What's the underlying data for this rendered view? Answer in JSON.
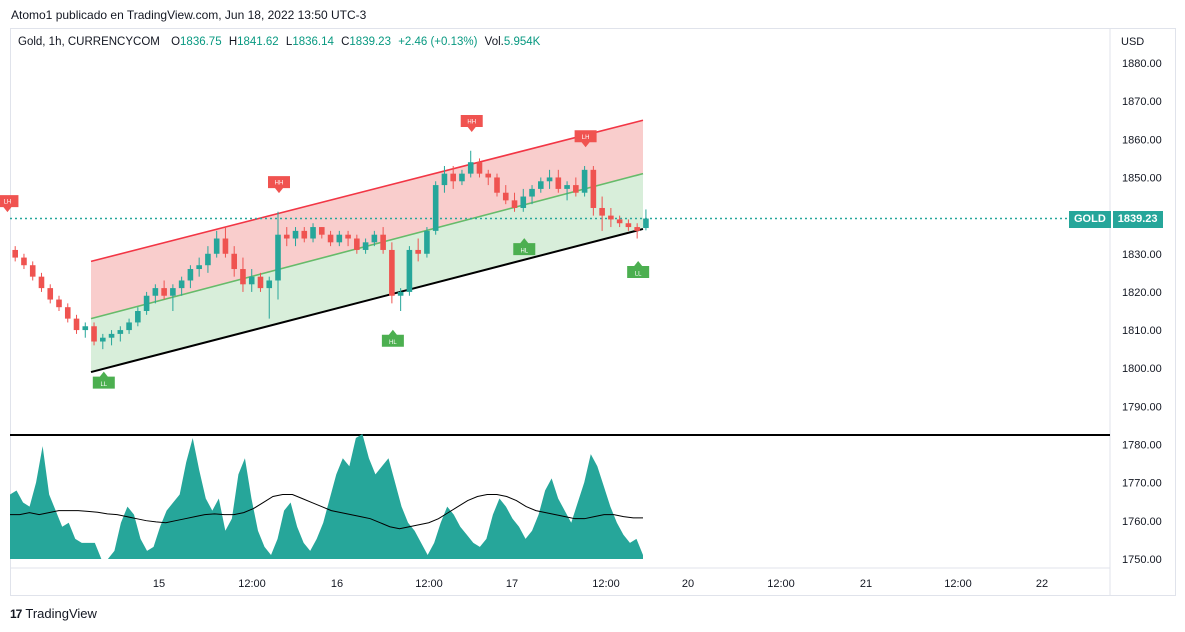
{
  "header": {
    "publisher_line": "Atomo1 publicado en TradingView.com, Jun 18, 2022 13:50 UTC-3"
  },
  "legend": {
    "symbol": "Gold, 1h, CURRENCYCOM",
    "open_label": "O",
    "open": "1836.75",
    "high_label": "H",
    "high": "1841.62",
    "low_label": "L",
    "low": "1836.14",
    "close_label": "C",
    "close": "1839.23",
    "change": "+2.46 (+0.13%)",
    "vol_label": "Vol.",
    "vol": "5.954K"
  },
  "price_badge": {
    "symbol": "GOLD",
    "value": "1839.23"
  },
  "footer": {
    "brand": "TradingView",
    "logo_glyph": "17"
  },
  "colors": {
    "up": "#26a69a",
    "down": "#ef5350",
    "red_zone": "#f8c8c6",
    "green_zone": "#d4ecd6",
    "upper_line": "#f23645",
    "mid_line": "#66bb6a",
    "lower_line": "#000000",
    "volume": "#26a69a"
  },
  "chart_data": {
    "type": "candlestick",
    "currency": "USD",
    "y_ticks": [
      1880,
      1870,
      1860,
      1850,
      1840,
      1830,
      1820,
      1810,
      1800,
      1790,
      1780,
      1770,
      1760,
      1750
    ],
    "y_tick_labels": [
      "1880.00",
      "1870.00",
      "1860.00",
      "1850.00",
      "1840.00",
      "1830.00",
      "1820.00",
      "1810.00",
      "1800.00",
      "1790.00",
      "1780.00",
      "1770.00",
      "1760.00",
      "1750.00"
    ],
    "x_labels": [
      "15",
      "12:00",
      "16",
      "12:00",
      "17",
      "12:00",
      "20",
      "12:00",
      "21",
      "12:00",
      "22"
    ],
    "last_price": 1839.23,
    "candles": [
      [
        1831,
        1832,
        1828,
        1829
      ],
      [
        1829,
        1830,
        1826,
        1827
      ],
      [
        1827,
        1828,
        1823,
        1824
      ],
      [
        1824,
        1825,
        1820,
        1821
      ],
      [
        1821,
        1822,
        1817,
        1818
      ],
      [
        1818,
        1819,
        1815,
        1816
      ],
      [
        1816,
        1817,
        1812,
        1813
      ],
      [
        1813,
        1814,
        1809,
        1810
      ],
      [
        1810,
        1812,
        1808,
        1811
      ],
      [
        1811,
        1812,
        1806,
        1807
      ],
      [
        1807,
        1809,
        1805,
        1808
      ],
      [
        1808,
        1810,
        1806,
        1809
      ],
      [
        1809,
        1811,
        1807,
        1810
      ],
      [
        1810,
        1813,
        1809,
        1812
      ],
      [
        1812,
        1816,
        1811,
        1815
      ],
      [
        1815,
        1820,
        1814,
        1819
      ],
      [
        1819,
        1822,
        1817,
        1821
      ],
      [
        1821,
        1823,
        1818,
        1819
      ],
      [
        1819,
        1822,
        1815,
        1821
      ],
      [
        1821,
        1824,
        1819,
        1823
      ],
      [
        1823,
        1827,
        1821,
        1826
      ],
      [
        1826,
        1829,
        1824,
        1827
      ],
      [
        1827,
        1832,
        1825,
        1830
      ],
      [
        1830,
        1836,
        1829,
        1834
      ],
      [
        1834,
        1837,
        1829,
        1830
      ],
      [
        1830,
        1832,
        1824,
        1826
      ],
      [
        1826,
        1829,
        1820,
        1822
      ],
      [
        1822,
        1826,
        1820,
        1824
      ],
      [
        1824,
        1825,
        1820,
        1821
      ],
      [
        1821,
        1824,
        1813,
        1823
      ],
      [
        1823,
        1841,
        1818,
        1835
      ],
      [
        1835,
        1837,
        1832,
        1834
      ],
      [
        1834,
        1837,
        1832,
        1836
      ],
      [
        1836,
        1837,
        1833,
        1834
      ],
      [
        1834,
        1838,
        1833,
        1837
      ],
      [
        1837,
        1837,
        1834,
        1835
      ],
      [
        1835,
        1836,
        1832,
        1833
      ],
      [
        1833,
        1836,
        1832,
        1835
      ],
      [
        1835,
        1836,
        1832,
        1834
      ],
      [
        1834,
        1835,
        1830,
        1831
      ],
      [
        1831,
        1834,
        1830,
        1833
      ],
      [
        1833,
        1836,
        1832,
        1835
      ],
      [
        1835,
        1837,
        1830,
        1831
      ],
      [
        1831,
        1833,
        1817,
        1819
      ],
      [
        1819,
        1821,
        1815,
        1820
      ],
      [
        1820,
        1832,
        1819,
        1831
      ],
      [
        1831,
        1834,
        1828,
        1830
      ],
      [
        1830,
        1837,
        1829,
        1836
      ],
      [
        1836,
        1849,
        1835,
        1848
      ],
      [
        1848,
        1853,
        1846,
        1851
      ],
      [
        1851,
        1853,
        1847,
        1849
      ],
      [
        1849,
        1852,
        1848,
        1851
      ],
      [
        1851,
        1857,
        1850,
        1854
      ],
      [
        1854,
        1855,
        1850,
        1851
      ],
      [
        1851,
        1852,
        1848,
        1850
      ],
      [
        1850,
        1851,
        1845,
        1846
      ],
      [
        1846,
        1848,
        1843,
        1844
      ],
      [
        1844,
        1846,
        1841,
        1842
      ],
      [
        1842,
        1847,
        1841,
        1845
      ],
      [
        1845,
        1848,
        1843,
        1847
      ],
      [
        1847,
        1850,
        1846,
        1849
      ],
      [
        1849,
        1852,
        1847,
        1850
      ],
      [
        1850,
        1852,
        1846,
        1847
      ],
      [
        1847,
        1849,
        1844,
        1848
      ],
      [
        1848,
        1850,
        1845,
        1846
      ],
      [
        1846,
        1853,
        1845,
        1852
      ],
      [
        1852,
        1853,
        1840,
        1842
      ],
      [
        1842,
        1845,
        1836,
        1840
      ],
      [
        1840,
        1842,
        1837,
        1839
      ],
      [
        1839,
        1840,
        1837,
        1838
      ],
      [
        1838,
        1839,
        1836,
        1837
      ],
      [
        1837,
        1838,
        1834,
        1836
      ],
      [
        1836.75,
        1841.62,
        1836.14,
        1839.23
      ]
    ],
    "channel": {
      "lower_start": 1799,
      "lower_end": 1836.5,
      "mid_start": 1813,
      "mid_end": 1851,
      "upper_start": 1828,
      "upper_end": 1865
    },
    "pivot_labels": [
      {
        "text": "LH",
        "bar": -1,
        "price": 1843,
        "type": "high"
      },
      {
        "text": "LL",
        "bar": 10,
        "price": 1797,
        "type": "low"
      },
      {
        "text": "HH",
        "bar": 30,
        "price": 1848,
        "type": "high"
      },
      {
        "text": "HL",
        "bar": 43,
        "price": 1808,
        "type": "low"
      },
      {
        "text": "HH",
        "bar": 52,
        "price": 1864,
        "type": "high"
      },
      {
        "text": "HL",
        "bar": 58,
        "price": 1832,
        "type": "low"
      },
      {
        "text": "LH",
        "bar": 65,
        "price": 1860,
        "type": "high"
      },
      {
        "text": "LL",
        "bar": 71,
        "price": 1826,
        "type": "low"
      }
    ],
    "oscillator": {
      "values": [
        1769,
        1770,
        1767,
        1766,
        1772,
        1781,
        1769,
        1765,
        1761,
        1762,
        1758,
        1757,
        1757,
        1757,
        1753,
        1753,
        1755,
        1762,
        1766,
        1764,
        1758,
        1755,
        1756,
        1761,
        1765,
        1767,
        1769,
        1777,
        1783,
        1775,
        1768,
        1765,
        1768,
        1760,
        1763,
        1774,
        1778,
        1768,
        1760,
        1756,
        1754,
        1758,
        1765,
        1767,
        1761,
        1757,
        1755,
        1758,
        1762,
        1768,
        1774,
        1778,
        1776,
        1783,
        1784,
        1778,
        1774,
        1776,
        1778,
        1772,
        1766,
        1762,
        1760,
        1757,
        1754,
        1757,
        1762,
        1766,
        1764,
        1761,
        1759,
        1757,
        1756,
        1758,
        1764,
        1768,
        1766,
        1763,
        1761,
        1758,
        1760,
        1764,
        1770,
        1773,
        1768,
        1765,
        1762,
        1767,
        1772,
        1779,
        1776,
        1771,
        1766,
        1762,
        1759,
        1757,
        1758,
        1754
      ],
      "ma": [
        1764,
        1764,
        1764.5,
        1764,
        1764.5,
        1765,
        1765,
        1765,
        1764.8,
        1764.6,
        1764.2,
        1764,
        1763.5,
        1763,
        1762.5,
        1762.2,
        1762,
        1762.5,
        1763,
        1763.5,
        1764,
        1764.2,
        1764,
        1764,
        1764.5,
        1765.5,
        1767,
        1768.5,
        1769,
        1769,
        1768,
        1767,
        1766,
        1765,
        1764.5,
        1764,
        1763.5,
        1763,
        1762,
        1761,
        1760.5,
        1761,
        1761.5,
        1762,
        1763,
        1764.5,
        1766,
        1767.5,
        1768.5,
        1769,
        1769,
        1768.5,
        1767.5,
        1766,
        1765,
        1764.5,
        1764,
        1763.5,
        1763,
        1763,
        1763.5,
        1764,
        1764,
        1763.5,
        1763.2,
        1763.2
      ],
      "scale_min": 1753,
      "scale_max": 1784
    }
  }
}
